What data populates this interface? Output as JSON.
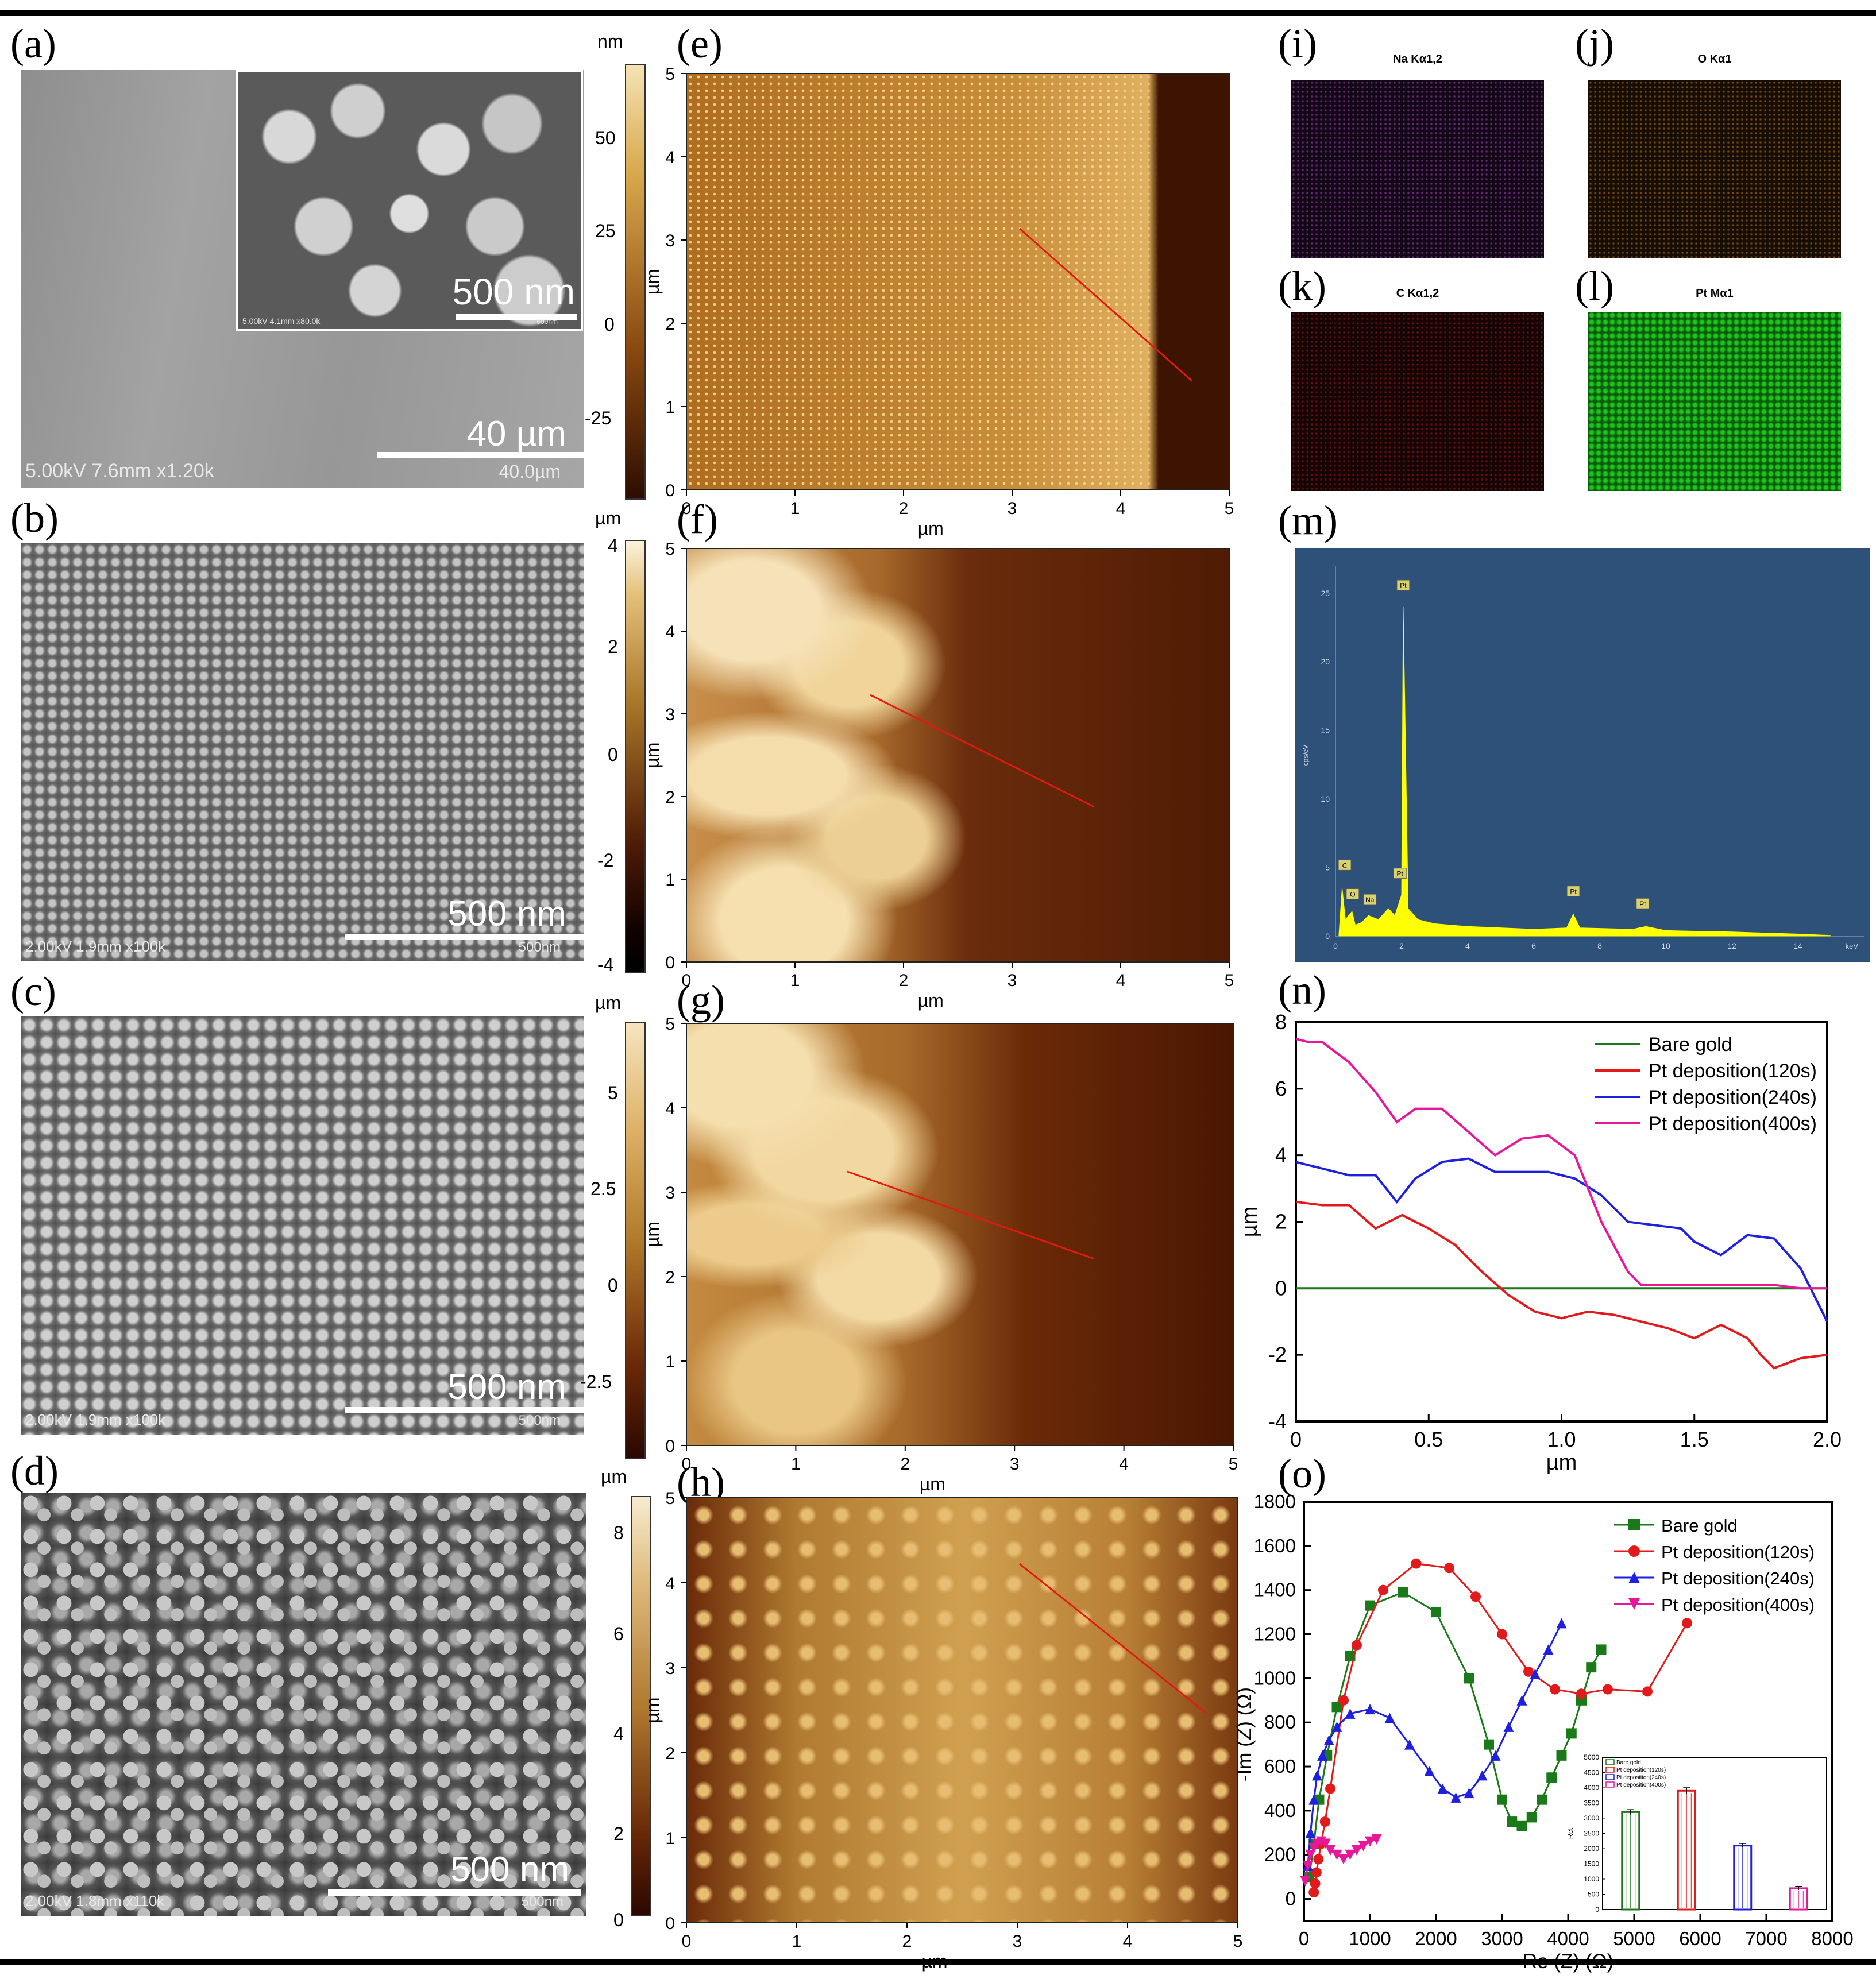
{
  "panels": {
    "a": "(a)",
    "b": "(b)",
    "c": "(c)",
    "d": "(d)",
    "e": "(e)",
    "f": "(f)",
    "g": "(g)",
    "h": "(h)",
    "i": "(i)",
    "j": "(j)",
    "k": "(k)",
    "l": "(l)",
    "m": "(m)",
    "n": "(n)",
    "o": "(o)"
  },
  "sem": {
    "a_scale": "40 µm",
    "a_meta": "5.00kV 7.6mm x1.20k",
    "a_marker": "40.0µm",
    "a_inset_scale": "500 nm",
    "a_inset_meta": "5.00kV 4.1mm x80.0k",
    "a_inset_marker": "500nm",
    "b_scale": "500 nm",
    "b_meta": "2.00kV 1.9mm x100k",
    "b_marker": "500nm",
    "c_scale": "500 nm",
    "c_meta": "2.00kV 1.9mm x100k",
    "c_marker": "500nm",
    "d_scale": "500 nm",
    "d_meta": "2.00kV 1.8mm x110k",
    "d_marker": "500nm"
  },
  "colorbars": {
    "e": {
      "unit": "nm",
      "ticks": [
        "50",
        "25",
        "0",
        "-25"
      ]
    },
    "f": {
      "unit": "µm",
      "ticks": [
        "4",
        "2",
        "0",
        "-2",
        "-4"
      ]
    },
    "g": {
      "unit": "µm",
      "ticks": [
        "5",
        "2.5",
        "0",
        "-2.5"
      ]
    },
    "h": {
      "unit": "µm",
      "ticks": [
        "8",
        "6",
        "4",
        "2",
        "0"
      ]
    }
  },
  "afm_axes": {
    "xlabel": "µm",
    "ylabel": "µm",
    "xticks": [
      "0",
      "1",
      "2",
      "3",
      "4",
      "5"
    ],
    "yticks": [
      "0",
      "1",
      "2",
      "3",
      "4",
      "5"
    ]
  },
  "eds": {
    "i": "Na Kα1,2",
    "j": "O Kα1",
    "k": "C Kα1,2",
    "l": "Pt Mα1",
    "spectrum_ylabel": "cps/eV",
    "spectrum_unit": "keV",
    "peaks": [
      "C",
      "O",
      "Na",
      "Pt",
      "Pt",
      "Pt",
      "Pt"
    ],
    "yticks": [
      "0",
      "5",
      "10",
      "15",
      "20",
      "25"
    ],
    "xticks": [
      "0",
      "2",
      "4",
      "6",
      "8",
      "10",
      "12",
      "14"
    ]
  },
  "colors": {
    "bare": "#1a7a1a",
    "pt120": "#e31a1c",
    "pt240": "#1f1fe0",
    "pt400": "#e8179a",
    "eds_bg": "#2d5179",
    "eds_peak": "#ffff00"
  },
  "chart_data": [
    {
      "type": "line",
      "panel": "n",
      "xlabel": "µm",
      "ylabel": "µm",
      "xlim": [
        0,
        2.0
      ],
      "ylim": [
        -4,
        8
      ],
      "xticks": [
        "0",
        "0.5",
        "1.0",
        "1.5",
        "2.0"
      ],
      "yticks": [
        "-4",
        "-2",
        "0",
        "2",
        "4",
        "6",
        "8"
      ],
      "legend_position": "top-right",
      "series": [
        {
          "name": "Bare gold",
          "x": [
            0,
            0.5,
            1.0,
            1.5,
            2.0
          ],
          "y": [
            0,
            0,
            0,
            0,
            0
          ]
        },
        {
          "name": "Pt deposition(120s)",
          "x": [
            0,
            0.1,
            0.2,
            0.3,
            0.4,
            0.5,
            0.6,
            0.7,
            0.8,
            0.9,
            1.0,
            1.1,
            1.2,
            1.3,
            1.4,
            1.5,
            1.6,
            1.7,
            1.75,
            1.8,
            1.9,
            2.0
          ],
          "y": [
            2.6,
            2.5,
            2.5,
            1.8,
            2.2,
            1.8,
            1.3,
            0.5,
            -0.2,
            -0.7,
            -0.9,
            -0.7,
            -0.8,
            -1.0,
            -1.2,
            -1.5,
            -1.1,
            -1.5,
            -2.0,
            -2.4,
            -2.1,
            -2.0
          ]
        },
        {
          "name": "Pt deposition(240s)",
          "x": [
            0,
            0.1,
            0.2,
            0.3,
            0.38,
            0.45,
            0.55,
            0.65,
            0.75,
            0.85,
            0.95,
            1.05,
            1.15,
            1.25,
            1.35,
            1.45,
            1.5,
            1.6,
            1.7,
            1.8,
            1.9,
            2.0
          ],
          "y": [
            3.8,
            3.6,
            3.4,
            3.4,
            2.6,
            3.3,
            3.8,
            3.9,
            3.5,
            3.5,
            3.5,
            3.3,
            2.8,
            2.0,
            1.9,
            1.8,
            1.4,
            1.0,
            1.6,
            1.5,
            0.6,
            -1.0
          ]
        },
        {
          "name": "Pt deposition(400s)",
          "x": [
            0,
            0.05,
            0.1,
            0.2,
            0.3,
            0.38,
            0.45,
            0.55,
            0.65,
            0.75,
            0.85,
            0.95,
            1.05,
            1.15,
            1.25,
            1.3,
            1.4,
            1.5,
            1.6,
            1.7,
            1.8,
            1.9,
            2.0
          ],
          "y": [
            7.5,
            7.4,
            7.4,
            6.8,
            5.9,
            5.0,
            5.4,
            5.4,
            4.7,
            4.0,
            4.5,
            4.6,
            4.0,
            2.0,
            0.5,
            0.1,
            0.1,
            0.1,
            0.1,
            0.1,
            0.1,
            0.0,
            0.0
          ]
        }
      ]
    },
    {
      "type": "scatter",
      "panel": "o",
      "xlabel": "Re (Z) (Ω)",
      "ylabel": "-Im (Z) (Ω)",
      "xlim": [
        0,
        8000
      ],
      "ylim": [
        -100,
        1800
      ],
      "xticks": [
        "0",
        "1000",
        "2000",
        "3000",
        "4000",
        "5000",
        "6000",
        "7000",
        "8000"
      ],
      "yticks": [
        "0",
        "200",
        "400",
        "600",
        "800",
        "1000",
        "1200",
        "1400",
        "1600",
        "1800"
      ],
      "legend_position": "top-right",
      "series": [
        {
          "name": "Bare gold",
          "marker": "square",
          "x": [
            80,
            150,
            230,
            350,
            500,
            700,
            1000,
            1500,
            2000,
            2500,
            2800,
            3000,
            3150,
            3300,
            3450,
            3600,
            3750,
            3900,
            4050,
            4200,
            4350,
            4500
          ],
          "y": [
            100,
            250,
            450,
            650,
            870,
            1100,
            1330,
            1390,
            1300,
            1000,
            700,
            450,
            350,
            330,
            370,
            450,
            550,
            650,
            750,
            900,
            1050,
            1130
          ]
        },
        {
          "name": "Pt deposition(120s)",
          "marker": "circle",
          "x": [
            150,
            170,
            190,
            220,
            260,
            320,
            400,
            600,
            800,
            1200,
            1700,
            2200,
            2600,
            3000,
            3400,
            3800,
            4200,
            4600,
            5200,
            5800
          ],
          "y": [
            30,
            70,
            120,
            180,
            250,
            350,
            500,
            900,
            1150,
            1400,
            1520,
            1500,
            1370,
            1200,
            1030,
            950,
            930,
            950,
            940,
            1250
          ]
        },
        {
          "name": "Pt deposition(240s)",
          "marker": "triangle",
          "x": [
            60,
            100,
            150,
            200,
            280,
            380,
            500,
            700,
            1000,
            1300,
            1600,
            1900,
            2100,
            2300,
            2500,
            2700,
            2900,
            3100,
            3300,
            3500,
            3700,
            3900
          ],
          "y": [
            150,
            300,
            450,
            560,
            650,
            720,
            780,
            840,
            860,
            820,
            700,
            580,
            500,
            460,
            480,
            560,
            650,
            780,
            900,
            1020,
            1130,
            1250
          ]
        },
        {
          "name": "Pt deposition(400s)",
          "marker": "triangle-down",
          "x": [
            20,
            60,
            100,
            150,
            200,
            260,
            330,
            400,
            500,
            600,
            700,
            800,
            900,
            1000,
            1100
          ],
          "y": [
            80,
            150,
            200,
            230,
            250,
            260,
            250,
            220,
            200,
            180,
            200,
            220,
            240,
            260,
            270
          ]
        }
      ],
      "inset": {
        "type": "bar",
        "ylabel": "Rct",
        "ylim": [
          0,
          5000
        ],
        "yticks": [
          "0",
          "500",
          "1000",
          "1500",
          "2000",
          "2500",
          "3000",
          "3500",
          "4000",
          "4500",
          "5000"
        ],
        "categories": [
          "Bare gold",
          "Pt deposition(120s)",
          "Pt deposition(240s)",
          "Pt deposition(400s)"
        ],
        "values": [
          3200,
          3900,
          2100,
          700
        ],
        "errors": [
          80,
          100,
          70,
          60
        ]
      }
    }
  ]
}
